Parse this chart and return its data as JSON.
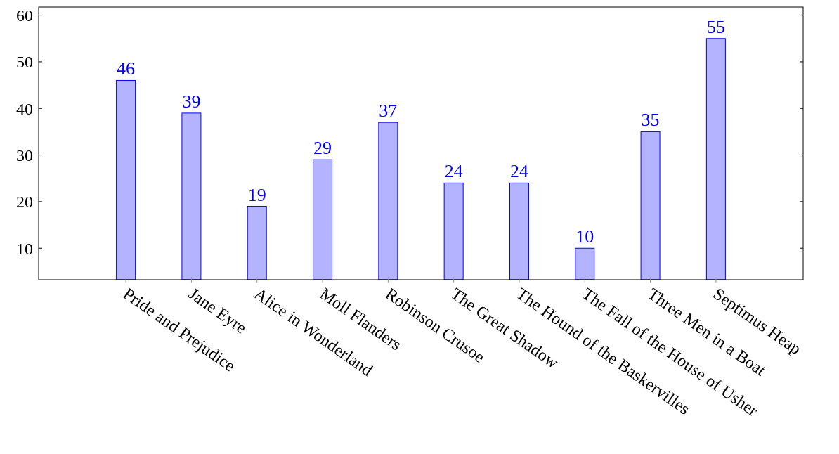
{
  "chart_data": {
    "type": "bar",
    "categories": [
      "Pride and Prejudice",
      "Jane Eyre",
      "Alice in Wonderland",
      "Moll Flanders",
      "Robinson Crusoe",
      "The Great Shadow",
      "The Hound of the Baskervilles",
      "The Fall of the House of Usher",
      "Three Men in a Boat",
      "Septimus Heap"
    ],
    "values": [
      46,
      39,
      19,
      29,
      37,
      24,
      24,
      10,
      35,
      55
    ],
    "color": "#b3b3ff",
    "ylim": [
      3.25,
      61.75
    ],
    "yticks": [
      10,
      20,
      30,
      40,
      50,
      60
    ],
    "data_labels": true
  }
}
